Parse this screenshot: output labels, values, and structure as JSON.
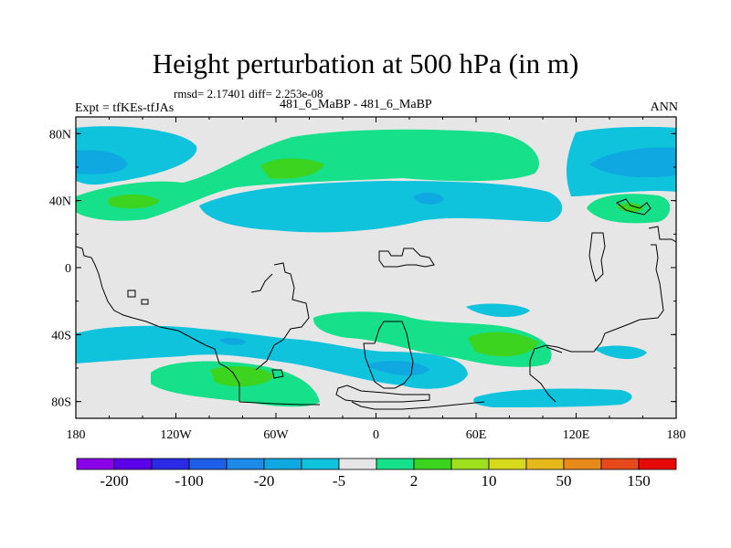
{
  "title": "Height perturbation at 500 hPa (in m)",
  "stats": "rmsd= 2.17401  diff= 2.253e-08",
  "experiment": "Expt = tfKEs-tfJAs",
  "center_label": "481_6_MaBP - 481_6_MaBP",
  "season": "ANN",
  "y_ticks": [
    "80N",
    "40N",
    "0",
    "40S",
    "80S"
  ],
  "x_ticks": [
    "180",
    "120W",
    "60W",
    "0",
    "60E",
    "120E",
    "180"
  ],
  "colorbar": {
    "colors": [
      "#8a00e8",
      "#5b00e8",
      "#2b2be6",
      "#1e5ee8",
      "#1d8ae8",
      "#10a8e0",
      "#0fc3dc",
      "#e6e6e6",
      "#16e08a",
      "#3cd41e",
      "#9ee01e",
      "#d6d91c",
      "#e6b81a",
      "#e68a1a",
      "#e64a1a",
      "#e60a0a"
    ],
    "labels": [
      "-200",
      "-100",
      "-20",
      "-5",
      "2",
      "10",
      "50",
      "150"
    ]
  },
  "chart_data": {
    "type": "contour-map",
    "variable": "Height perturbation at 500 hPa",
    "units": "m",
    "xlim": [
      -180,
      180
    ],
    "ylim": [
      -90,
      90
    ],
    "contour_levels": [
      -200,
      -100,
      -20,
      -5,
      2,
      10,
      50,
      150
    ],
    "background_color": "#e6e6e6",
    "features": [
      {
        "lon": -160,
        "lat": 68,
        "sign": "negative",
        "level": "-5"
      },
      {
        "lon": -60,
        "lat": 60,
        "sign": "positive",
        "level": "10"
      },
      {
        "lon": -135,
        "lat": 40,
        "sign": "positive",
        "level": "10"
      },
      {
        "lon": 30,
        "lat": 42,
        "sign": "negative",
        "level": "-5"
      },
      {
        "lon": 150,
        "lat": 65,
        "sign": "negative",
        "level": "-5"
      },
      {
        "lon": 150,
        "lat": 37,
        "sign": "positive",
        "level": "10"
      },
      {
        "lon": 40,
        "lat": -35,
        "sign": "positive",
        "level": "2"
      },
      {
        "lon": -100,
        "lat": -43,
        "sign": "negative",
        "level": "-5"
      },
      {
        "lon": 80,
        "lat": -47,
        "sign": "positive",
        "level": "10"
      },
      {
        "lon": 20,
        "lat": -60,
        "sign": "negative",
        "level": "-5"
      },
      {
        "lon": -80,
        "lat": -66,
        "sign": "positive",
        "level": "10"
      },
      {
        "lon": 100,
        "lat": -78,
        "sign": "negative",
        "level": "-5"
      }
    ]
  }
}
